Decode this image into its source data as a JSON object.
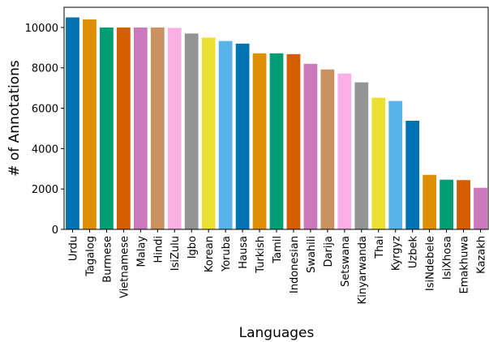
{
  "chart_data": {
    "type": "bar",
    "title": "",
    "xlabel": "Languages",
    "ylabel": "# of Annotations",
    "ylim": [
      0,
      11000
    ],
    "yticks": [
      0,
      2000,
      4000,
      6000,
      8000,
      10000
    ],
    "categories": [
      "Urdu",
      "Tagalog",
      "Burmese",
      "Vietnamese",
      "Malay",
      "Hindi",
      "IsiZulu",
      "Igbo",
      "Korean",
      "Yoruba",
      "Hausa",
      "Turkish",
      "Tamil",
      "Indonesian",
      "Swahili",
      "Darija",
      "Setswana",
      "Kinyarwanda",
      "Thai",
      "Kyrgyz",
      "Uzbek",
      "IsiNdebele",
      "IsiXhosa",
      "Emakhuwa",
      "Kazakh"
    ],
    "values": [
      10500,
      10400,
      10000,
      10000,
      10000,
      10000,
      9980,
      9700,
      9500,
      9330,
      9200,
      8720,
      8720,
      8680,
      8200,
      7920,
      7720,
      7280,
      6520,
      6360,
      5380,
      2700,
      2460,
      2440,
      2060
    ],
    "colors": [
      "#0173b2",
      "#de8f05",
      "#029e73",
      "#d55e00",
      "#cc78bc",
      "#ca9161",
      "#fbafe4",
      "#949494",
      "#ece133",
      "#56b4e9",
      "#0173b2",
      "#de8f05",
      "#029e73",
      "#d55e00",
      "#cc78bc",
      "#ca9161",
      "#fbafe4",
      "#949494",
      "#ece133",
      "#56b4e9",
      "#0173b2",
      "#de8f05",
      "#029e73",
      "#d55e00",
      "#cc78bc"
    ]
  }
}
